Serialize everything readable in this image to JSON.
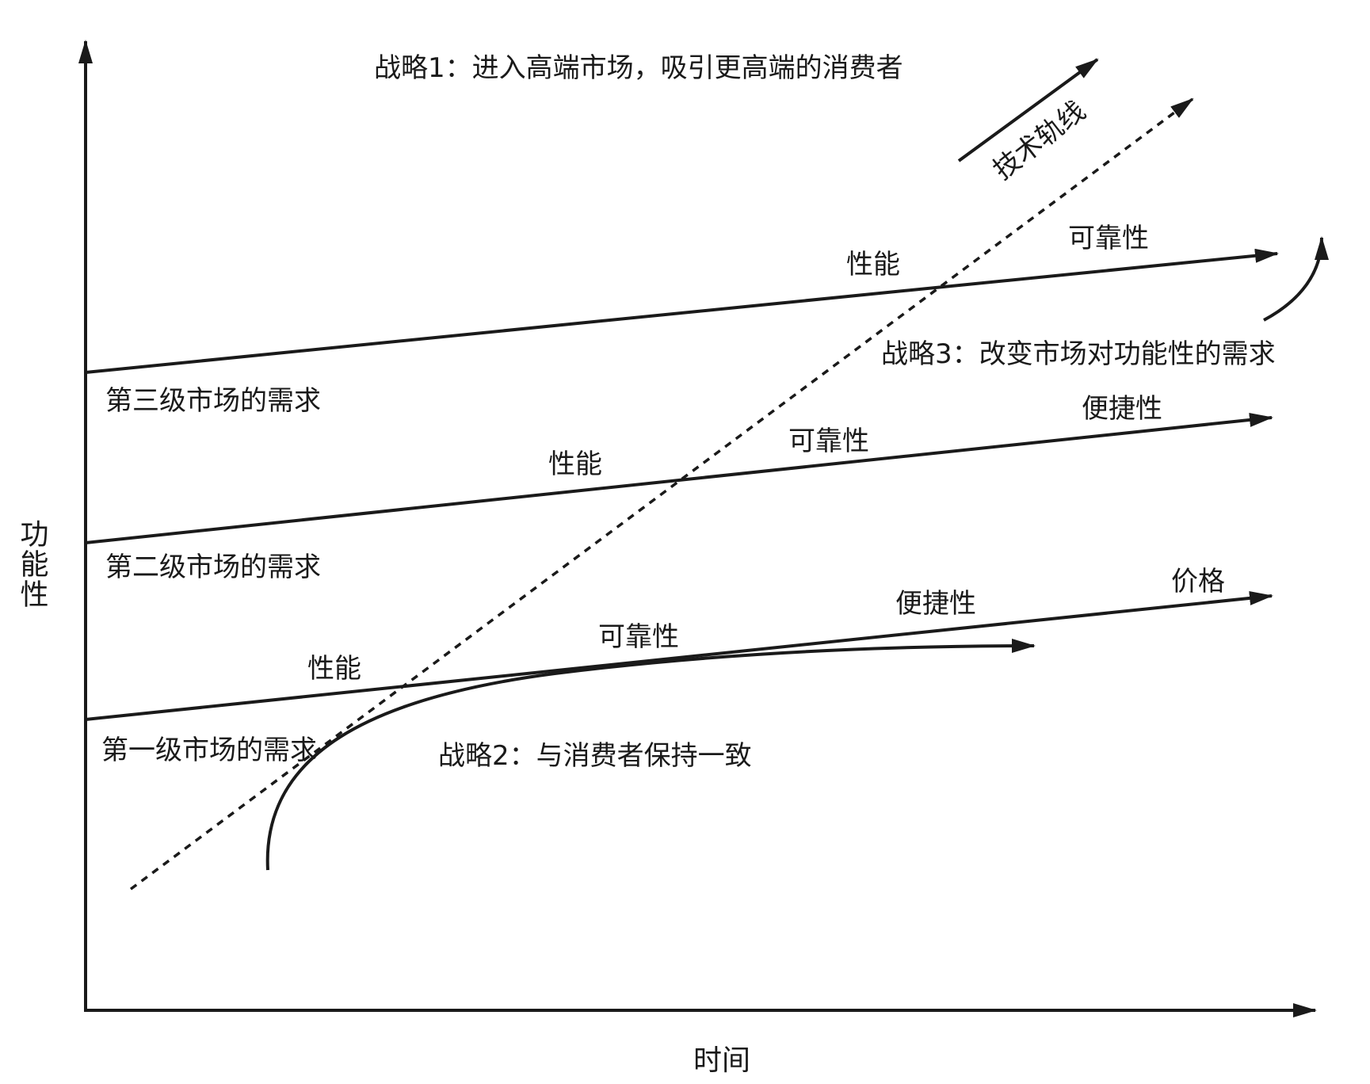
{
  "axes": {
    "y_label": "功能性",
    "x_label": "时间"
  },
  "strategies": {
    "s1": "战略1：进入高端市场，吸引更高端的消费者",
    "s2": "战略2：与消费者保持一致",
    "s3": "战略3：改变市场对功能性的需求"
  },
  "tech_trajectory": "技术轨线",
  "markets": {
    "m3": {
      "label": "第三级市场的需求",
      "attributes": [
        "性能",
        "可靠性"
      ]
    },
    "m2": {
      "label": "第二级市场的需求",
      "attributes": [
        "性能",
        "可靠性",
        "便捷性"
      ]
    },
    "m1": {
      "label": "第一级市场的需求",
      "attributes": [
        "性能",
        "可靠性",
        "便捷性",
        "价格"
      ]
    }
  },
  "colors": {
    "ink": "#1a1a1a",
    "background": "#ffffff"
  }
}
